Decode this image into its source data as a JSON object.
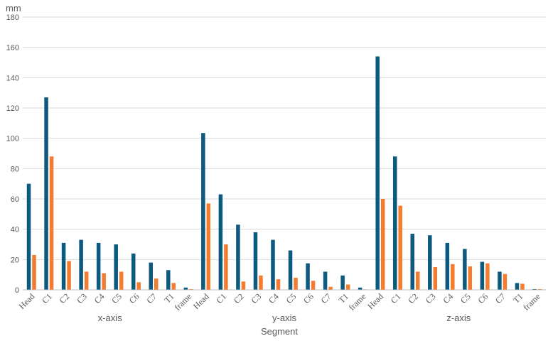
{
  "chart_data": {
    "type": "bar",
    "ylabel": "mm",
    "xlabel": "Segment",
    "ylim": [
      0,
      180
    ],
    "yticks": [
      0,
      20,
      40,
      60,
      80,
      100,
      120,
      140,
      160,
      180
    ],
    "grid": true,
    "legend": "none",
    "groups": [
      "x-axis",
      "y-axis",
      "z-axis"
    ],
    "categories": [
      "Head",
      "C1",
      "C2",
      "C3",
      "C4",
      "C5",
      "C6",
      "C7",
      "T1",
      "frame"
    ],
    "series": [
      {
        "color": "#0e5a7e",
        "values": [
          [
            70,
            127,
            31,
            33,
            31,
            30,
            24,
            18,
            13,
            1.5
          ],
          [
            103.5,
            63,
            43,
            38,
            33,
            26,
            17.5,
            12,
            9.5,
            1.5
          ],
          [
            154,
            88,
            37,
            36,
            31,
            27,
            18.5,
            12,
            4.5,
            0.5
          ]
        ]
      },
      {
        "color": "#f47c30",
        "values": [
          [
            23,
            88,
            19,
            12,
            11,
            12,
            5,
            7.5,
            4.5,
            0.5
          ],
          [
            57,
            30,
            5.5,
            9.5,
            7,
            8,
            6,
            2,
            3.5,
            0.3
          ],
          [
            60,
            55.5,
            12,
            15,
            17,
            15.5,
            17.5,
            10.5,
            4,
            0.5
          ]
        ]
      }
    ]
  }
}
